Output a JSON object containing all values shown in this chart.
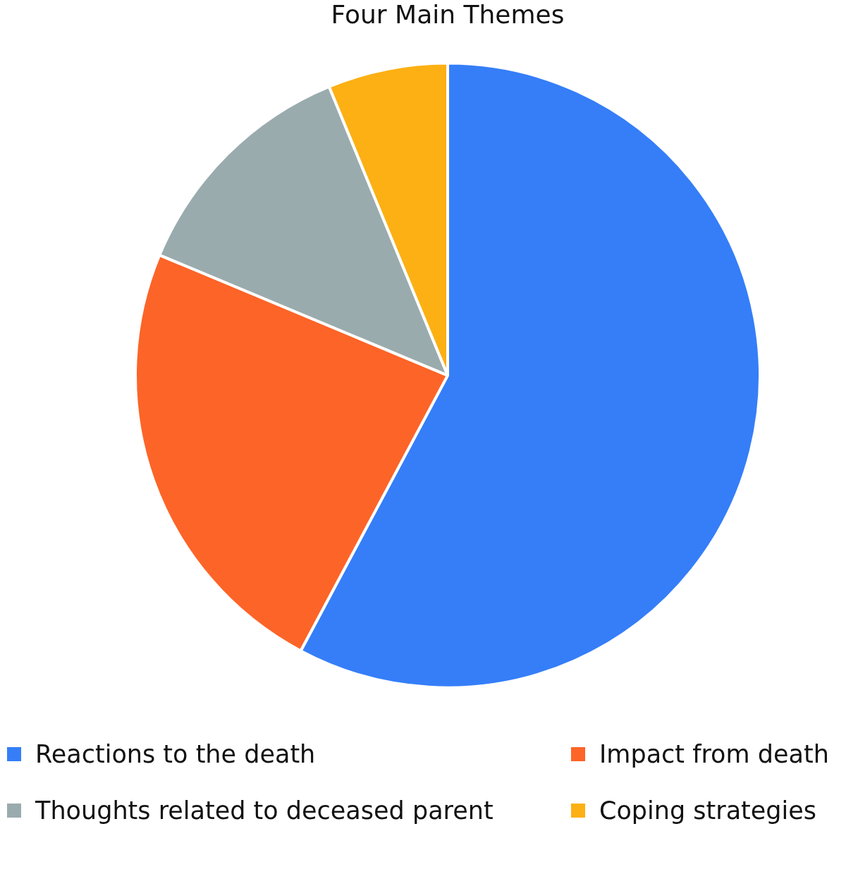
{
  "chart_data": {
    "type": "pie",
    "title": "Four Main Themes",
    "categories": [
      "Reactions to the death",
      "Impact from death",
      "Thoughts related to deceased parent",
      "Coping strategies"
    ],
    "values": [
      57.8,
      23.5,
      12.5,
      6.2
    ],
    "colors": [
      "#357ef8",
      "#fd6428",
      "#9aabae",
      "#fcb014"
    ],
    "legend": "bottom"
  }
}
